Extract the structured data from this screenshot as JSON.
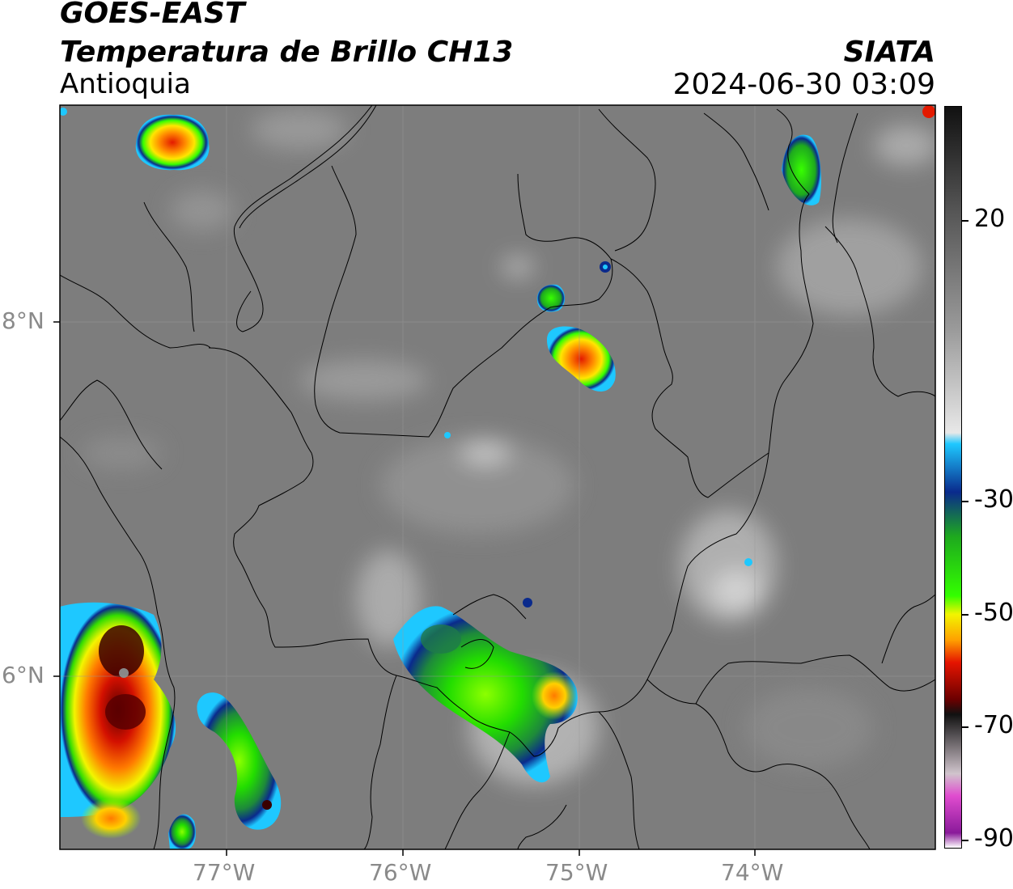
{
  "header": {
    "satellite": "GOES-EAST",
    "product": "Temperatura de Brillo CH13",
    "region": "Antioquia",
    "agency": "SIATA",
    "datetime": "2024-06-30 03:09"
  },
  "axes": {
    "lon_labels": [
      "77°W",
      "76°W",
      "75°W",
      "74°W"
    ],
    "lat_labels": [
      "8°N",
      "6°N"
    ]
  },
  "colorbar": {
    "labels": [
      "20",
      "-30",
      "-50",
      "-70",
      "-90"
    ],
    "colors": [
      "#111111",
      "#555555",
      "#9a9a9a",
      "#e8e8e8",
      "#1ec8ff",
      "#0a2a8c",
      "#1ea91e",
      "#33ff00",
      "#f2f500",
      "#ff9f00",
      "#e51400",
      "#6b0000",
      "#111111",
      "#d0c4cc",
      "#e04ccf",
      "#8a1a9a",
      "#ffffff"
    ]
  }
}
